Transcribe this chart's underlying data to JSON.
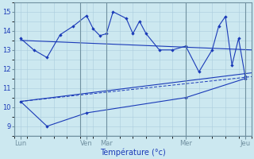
{
  "background_color": "#cce8f0",
  "grid_color": "#aaccdd",
  "line_color": "#1a3ab8",
  "xlabel": "Température (°c)",
  "xlim": [
    0,
    18
  ],
  "ylim": [
    8.5,
    15.5
  ],
  "yticks": [
    9,
    10,
    11,
    12,
    13,
    14,
    15
  ],
  "day_labels": [
    "Lun",
    "Ven",
    "Mar",
    "Mer",
    "Jeu"
  ],
  "day_positions": [
    0.5,
    5.5,
    7.0,
    13.0,
    17.5
  ],
  "vline_positions": [
    0,
    5,
    7,
    13,
    17.5
  ],
  "series_upper": {
    "x": [
      0.5,
      1.5,
      2.5,
      3.5,
      4.5,
      5.5,
      6.0,
      6.5,
      7.0,
      7.5,
      8.5,
      9.0,
      9.5,
      10.0,
      11.0,
      12.0,
      13.0,
      14.0,
      15.0,
      15.5,
      16.0,
      16.5,
      17.0,
      17.5
    ],
    "y": [
      13.6,
      13.0,
      12.6,
      13.8,
      14.25,
      14.8,
      14.1,
      13.75,
      13.85,
      15.0,
      14.65,
      13.85,
      14.5,
      13.85,
      13.0,
      13.0,
      13.2,
      11.85,
      13.0,
      14.25,
      14.75,
      12.2,
      13.6,
      11.6
    ]
  },
  "series_band_top": {
    "x": [
      0.5,
      18
    ],
    "y": [
      13.5,
      13.1
    ]
  },
  "series_band_mid": {
    "x": [
      0.5,
      18
    ],
    "y": [
      10.3,
      11.6
    ]
  },
  "series_band_bot": {
    "x": [
      0.5,
      18
    ],
    "y": [
      10.3,
      11.6
    ]
  },
  "series_lower_jagged": {
    "x": [
      0.5,
      2.5,
      5.5,
      13.0,
      17.5
    ],
    "y": [
      10.3,
      9.0,
      9.7,
      10.5,
      11.5
    ]
  }
}
